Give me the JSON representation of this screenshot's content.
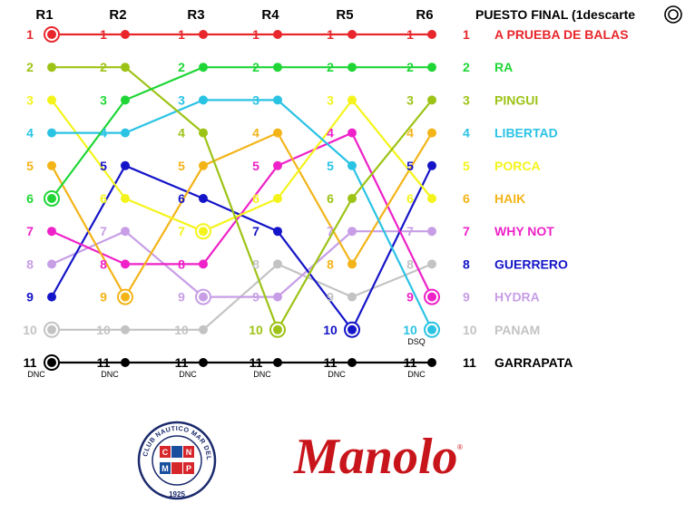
{
  "chart_data": {
    "type": "line",
    "x_labels": [
      "R1",
      "R2",
      "R3",
      "R4",
      "R5",
      "R6"
    ],
    "legend_title": "PUESTO FINAL (1descarte",
    "y_range": [
      1,
      11
    ],
    "y_inverted": true,
    "series": [
      {
        "name": "A PRUEBA DE BALAS",
        "final": 1,
        "color": "#e8262b",
        "values": [
          1,
          1,
          1,
          1,
          1,
          1
        ],
        "discard": 1
      },
      {
        "name": "RA",
        "final": 2,
        "color": "#1fd636",
        "values": [
          6,
          3,
          2,
          2,
          2,
          2
        ],
        "discard": 1
      },
      {
        "name": "PINGUI",
        "final": 3,
        "color": "#9dc316",
        "values": [
          2,
          2,
          4,
          10,
          6,
          3
        ],
        "discard": 4
      },
      {
        "name": "LIBERTAD",
        "final": 4,
        "color": "#2ac3e4",
        "values": [
          4,
          4,
          3,
          3,
          5,
          10
        ],
        "discard": 6
      },
      {
        "name": "PORCA",
        "final": 5,
        "color": "#f4f41c",
        "values": [
          3,
          6,
          7,
          6,
          3,
          6
        ],
        "discard": 3
      },
      {
        "name": "HAIK",
        "final": 6,
        "color": "#f3b418",
        "values": [
          5,
          9,
          5,
          4,
          8,
          4
        ],
        "discard": 2
      },
      {
        "name": "WHY NOT",
        "final": 7,
        "color": "#ee22c8",
        "values": [
          7,
          8,
          8,
          5,
          4,
          9
        ],
        "discard": 6
      },
      {
        "name": "GUERRERO",
        "final": 8,
        "color": "#1414c8",
        "values": [
          9,
          5,
          6,
          7,
          10,
          5
        ],
        "discard": 5
      },
      {
        "name": "HYDRA",
        "final": 9,
        "color": "#c79ee6",
        "values": [
          8,
          7,
          9,
          9,
          7,
          7
        ],
        "discard": 3
      },
      {
        "name": "PANAM",
        "final": 10,
        "color": "#c3c3c3",
        "values": [
          10,
          10,
          10,
          8,
          9,
          8
        ],
        "discard": 1
      },
      {
        "name": "GARRAPATA",
        "final": 11,
        "color": "#000000",
        "values": [
          11,
          11,
          11,
          11,
          11,
          11
        ],
        "discard": 1
      }
    ],
    "annotations": [
      {
        "text": "DNC",
        "series": "GARRAPATA",
        "race": 1
      },
      {
        "text": "DNC",
        "series": "GARRAPATA",
        "race": 2
      },
      {
        "text": "DNC",
        "series": "GARRAPATA",
        "race": 3
      },
      {
        "text": "DNC",
        "series": "GARRAPATA",
        "race": 4
      },
      {
        "text": "DNC",
        "series": "GARRAPATA",
        "race": 5
      },
      {
        "text": "DNC",
        "series": "GARRAPATA",
        "race": 6
      },
      {
        "text": "DSQ",
        "series": "LIBERTAD",
        "race": 6
      }
    ]
  },
  "logos": {
    "club_text": "CLUB NAUTICO MAR DEL PLATA",
    "club_year": "1925",
    "club_letters": [
      "C",
      "N",
      "M",
      "P"
    ],
    "sponsor": "Manolo",
    "sponsor_registered": "®"
  }
}
